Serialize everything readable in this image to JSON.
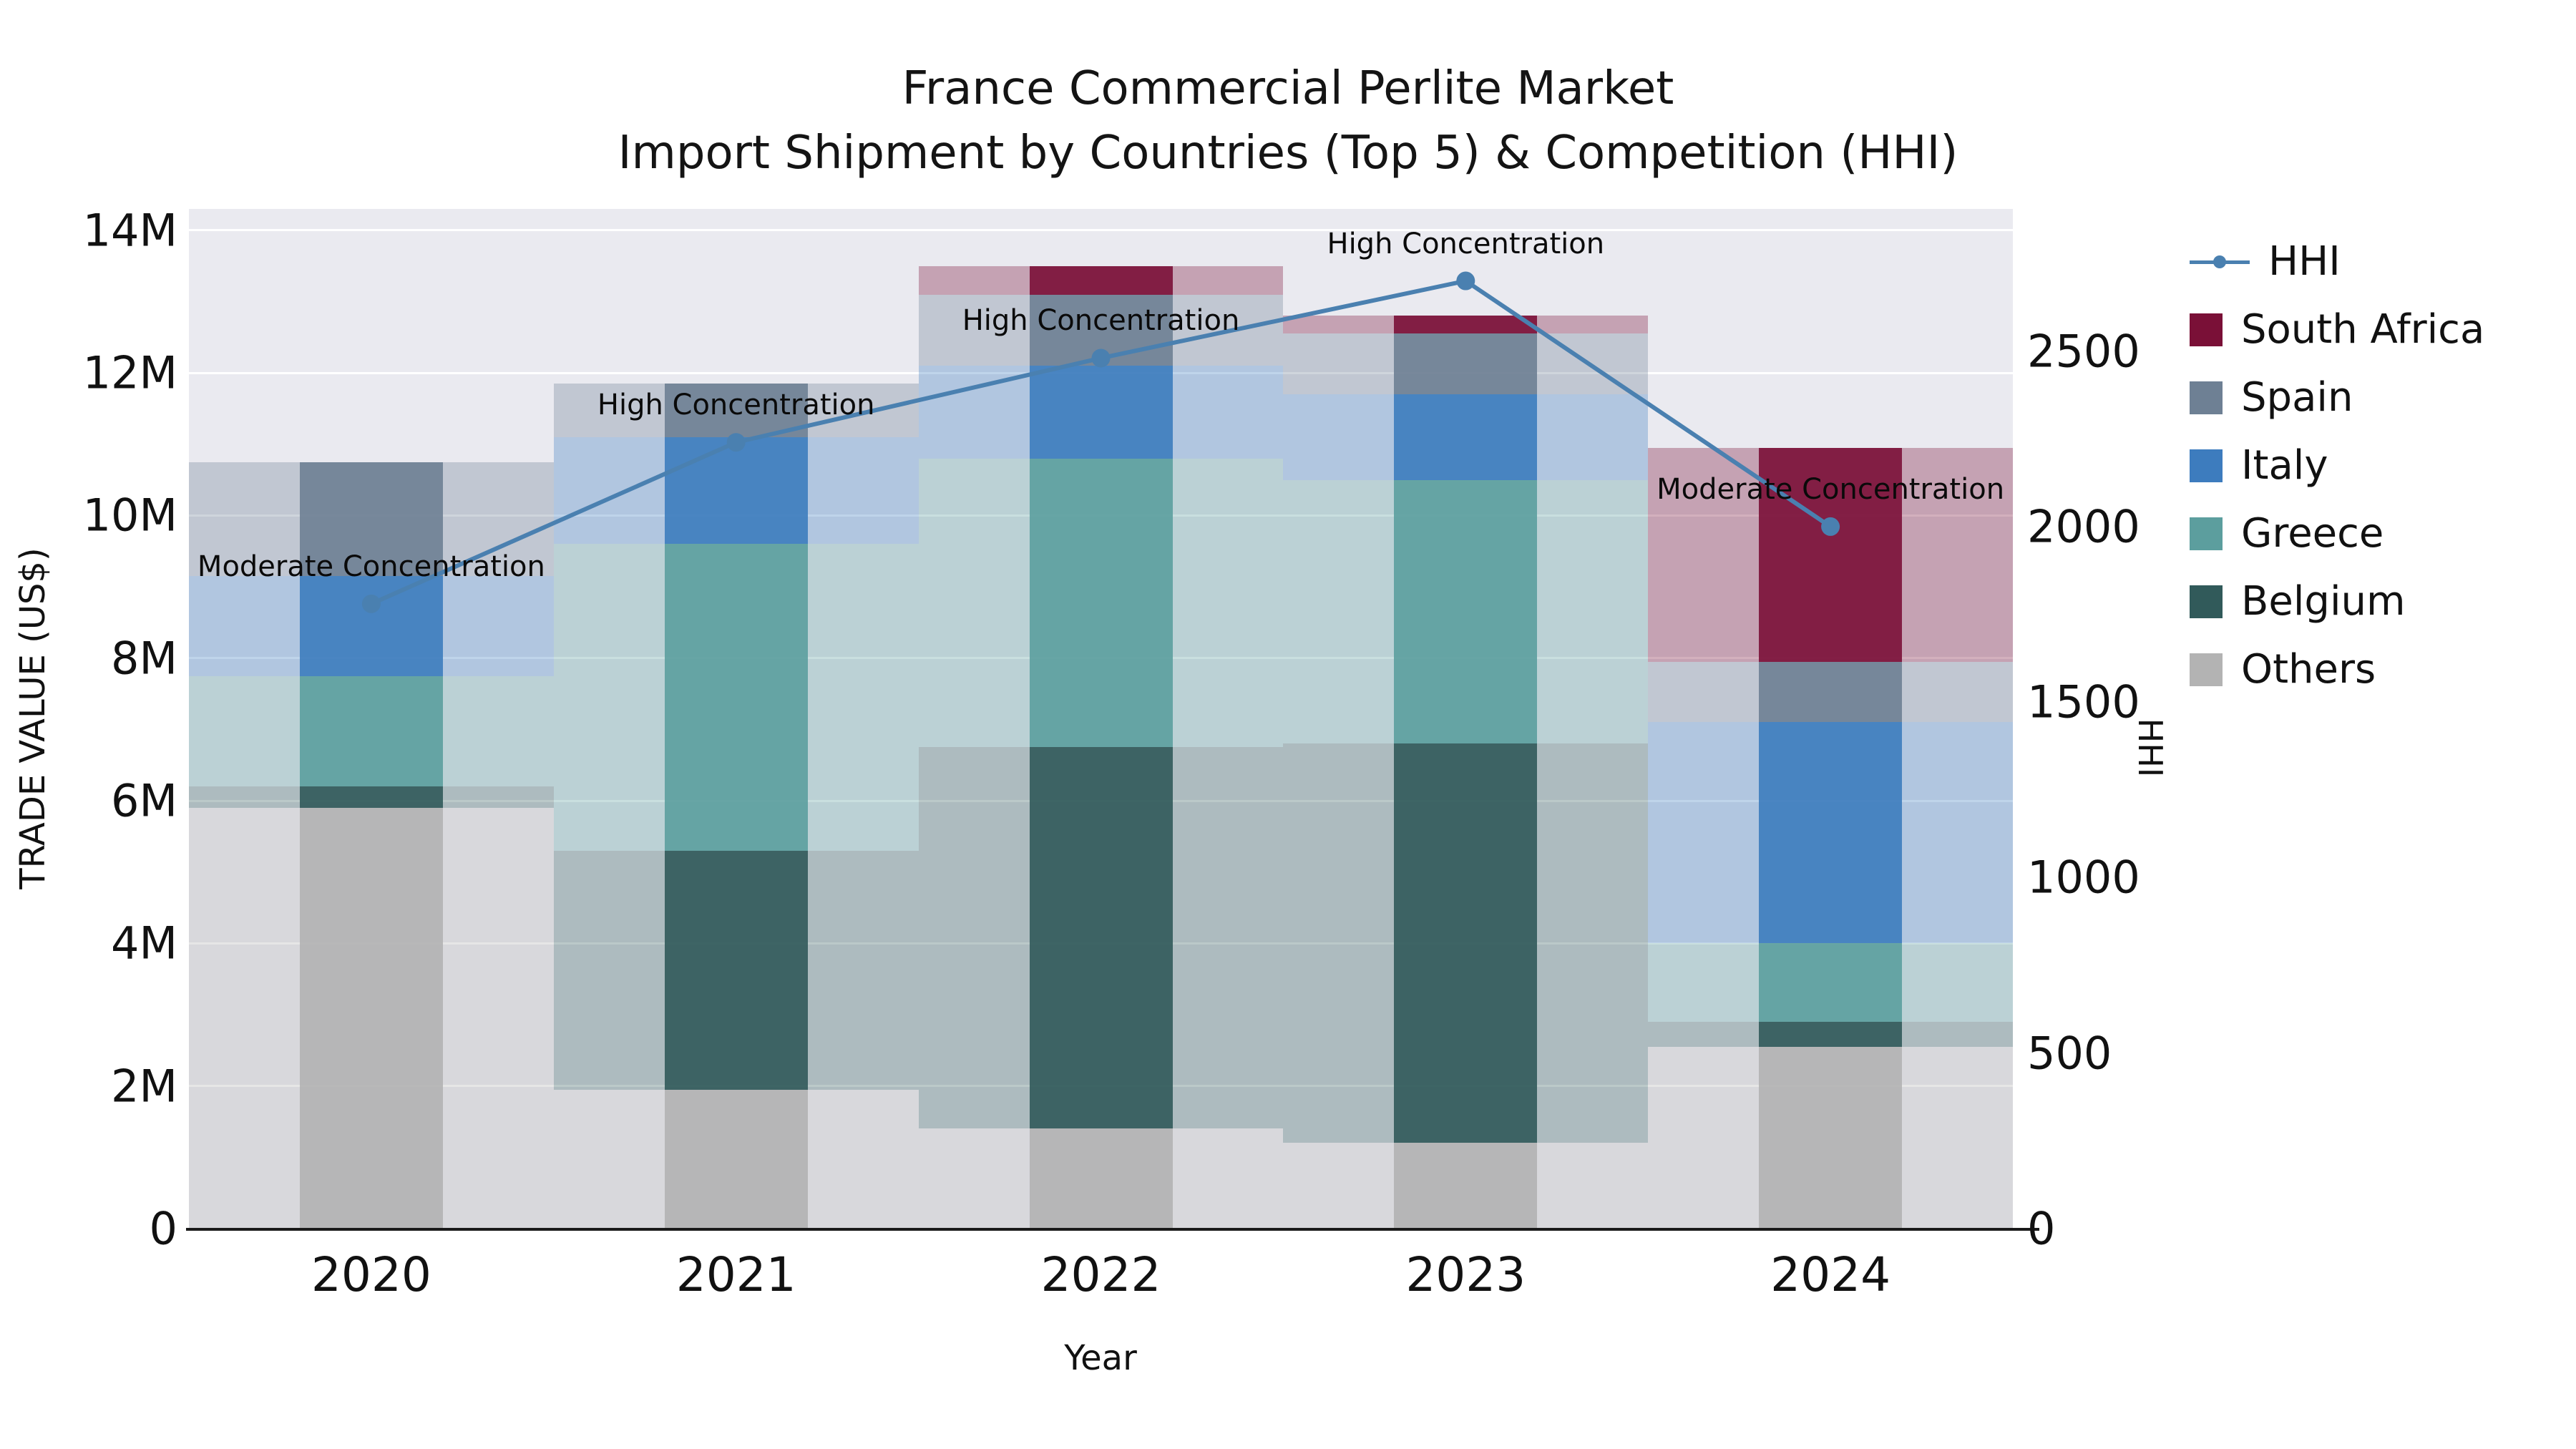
{
  "title": {
    "line1": "France Commercial Perlite Market",
    "line2": "Import Shipment by Countries (Top 5) & Competition (HHI)"
  },
  "axes": {
    "x_label": "Year",
    "y_left_label": "TRADE VALUE (US$)",
    "y_right_label": "HHI",
    "y_left_ticks": [
      {
        "value": 0,
        "label": "0"
      },
      {
        "value": 2000000,
        "label": "2M"
      },
      {
        "value": 4000000,
        "label": "4M"
      },
      {
        "value": 6000000,
        "label": "6M"
      },
      {
        "value": 8000000,
        "label": "8M"
      },
      {
        "value": 10000000,
        "label": "10M"
      },
      {
        "value": 12000000,
        "label": "12M"
      },
      {
        "value": 14000000,
        "label": "14M"
      }
    ],
    "y_right_ticks": [
      {
        "value": 0,
        "label": "0"
      },
      {
        "value": 500,
        "label": "500"
      },
      {
        "value": 1000,
        "label": "1000"
      },
      {
        "value": 1500,
        "label": "1500"
      },
      {
        "value": 2000,
        "label": "2000"
      },
      {
        "value": 2500,
        "label": "2500"
      }
    ]
  },
  "chart_data": {
    "type": "bar",
    "subtype": "stacked-bars-with-line-overlay",
    "title": "France Commercial Perlite Market\nImport Shipment by Countries (Top 5) & Competition (HHI)",
    "xlabel": "Year",
    "ylabel_left": "TRADE VALUE (US$)",
    "ylabel_right": "HHI",
    "categories": [
      "2020",
      "2021",
      "2022",
      "2023",
      "2024"
    ],
    "series": [
      {
        "name": "Others",
        "color": "#b3b3b3",
        "values": [
          5900000,
          1950000,
          1400000,
          1200000,
          2550000
        ]
      },
      {
        "name": "Belgium",
        "color": "#315a5a",
        "values": [
          300000,
          3350000,
          5350000,
          5600000,
          350000
        ]
      },
      {
        "name": "Greece",
        "color": "#5c9e9e",
        "values": [
          1550000,
          4300000,
          4050000,
          3700000,
          1100000
        ]
      },
      {
        "name": "Italy",
        "color": "#3d7cbe",
        "values": [
          1400000,
          1500000,
          1300000,
          1200000,
          3100000
        ]
      },
      {
        "name": "Spain",
        "color": "#6e8094",
        "values": [
          1600000,
          750000,
          1000000,
          850000,
          850000
        ]
      },
      {
        "name": "South Africa",
        "color": "#7a1037",
        "values": [
          0,
          0,
          400000,
          250000,
          3000000
        ]
      }
    ],
    "line": {
      "name": "HHI",
      "color": "#4a80b0",
      "axis": "right",
      "values": [
        1780,
        2240,
        2480,
        2700,
        2000
      ]
    },
    "annotations": [
      "Moderate Concentration",
      "High Concentration",
      "High Concentration",
      "High Concentration",
      "Moderate Concentration"
    ],
    "ylim_left": [
      0,
      14300000
    ],
    "ylim_right": [
      0,
      2905
    ],
    "grid": true,
    "legend_position": "right",
    "plot_background": "#eaeaf0",
    "bar_totals": [
      10750000,
      11850000,
      13500000,
      12800000,
      10950000
    ]
  },
  "legend": {
    "items": [
      {
        "label": "HHI",
        "type": "line",
        "color": "#4a80b0"
      },
      {
        "label": "South Africa",
        "type": "patch",
        "color": "#7a1037"
      },
      {
        "label": "Spain",
        "type": "patch",
        "color": "#6e8094"
      },
      {
        "label": "Italy",
        "type": "patch",
        "color": "#3d7cbe"
      },
      {
        "label": "Greece",
        "type": "patch",
        "color": "#5c9e9e"
      },
      {
        "label": "Belgium",
        "type": "patch",
        "color": "#315a5a"
      },
      {
        "label": "Others",
        "type": "patch",
        "color": "#b3b3b3"
      }
    ]
  }
}
